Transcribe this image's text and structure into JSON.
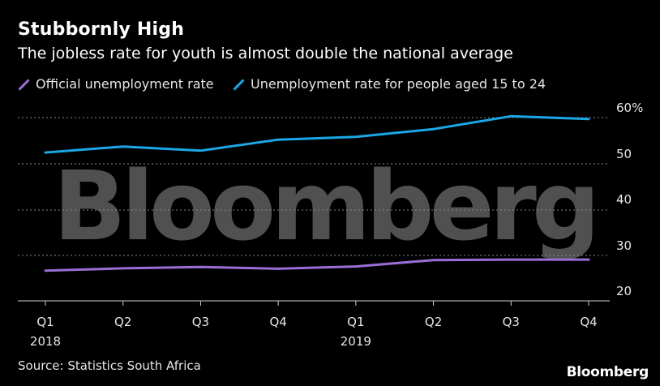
{
  "title": "Stubbornly High",
  "subtitle": "The jobless rate for youth is almost double the national average",
  "source": "Source: Statistics South Africa",
  "brand": "Bloomberg",
  "watermark": "Bloomberg",
  "colors": {
    "background": "#000000",
    "official": "#9b6ed6",
    "youth": "#1ba7e6"
  },
  "chart_data": {
    "type": "line",
    "categories": [
      "Q1",
      "Q2",
      "Q3",
      "Q4",
      "Q1",
      "Q2",
      "Q3",
      "Q4"
    ],
    "years": [
      "2018",
      "",
      "",
      "",
      "2019",
      "",
      "",
      ""
    ],
    "series": [
      {
        "name": "Official unemployment rate",
        "color": "#9b6ed6",
        "values": [
          26.7,
          27.2,
          27.5,
          27.1,
          27.6,
          29.0,
          29.1,
          29.1
        ]
      },
      {
        "name": "Unemployment rate for people aged 15 to 24",
        "color": "#1ba7e6",
        "values": [
          52.4,
          53.7,
          52.8,
          55.2,
          55.8,
          57.5,
          60.3,
          59.7
        ]
      }
    ],
    "ylim": [
      20,
      60
    ],
    "yticks": [
      "60%",
      "50",
      "40",
      "30",
      "20"
    ],
    "ytick_values": [
      60,
      50,
      40,
      30,
      20
    ],
    "grid": true,
    "legend": "top-left"
  }
}
